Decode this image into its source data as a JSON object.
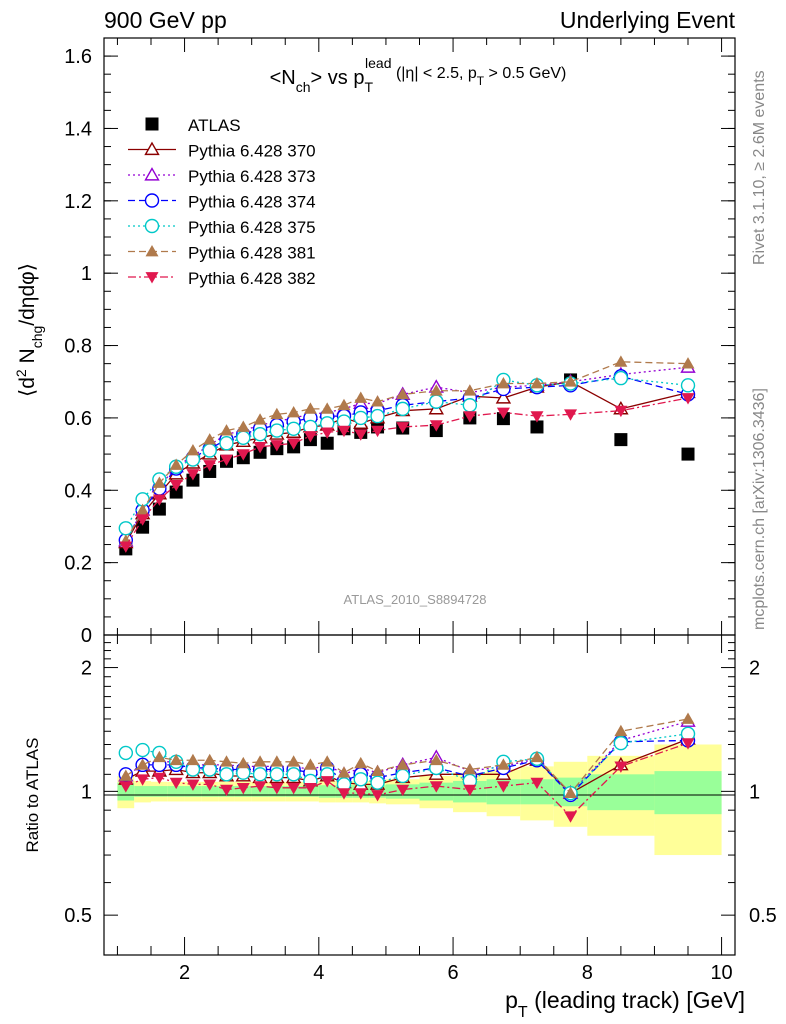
{
  "header": {
    "left": "900 GeV pp",
    "right": "Underlying Event"
  },
  "side": {
    "rivet": "Rivet 3.1.10, ≥ 2.6M events",
    "mcplots": "mcplots.cern.ch [arXiv:1306.3436]"
  },
  "watermark": "ATLAS_2010_S8894728",
  "chart_data": [
    {
      "type": "scatter",
      "title": "<N_ch> vs p_T^lead (|η| < 2.5, p_T > 0.5 GeV)",
      "xlabel": "p_T (leading track) [GeV]",
      "ylabel": "⟨d² N_chg/dηdφ⟩",
      "xlim": [
        0.8,
        10.2
      ],
      "ylim": [
        0,
        1.65
      ],
      "yticks": [
        0,
        0.2,
        0.4,
        0.6,
        0.8,
        1,
        1.2,
        1.4,
        1.6
      ],
      "ytick_labels": [
        "0",
        "0.2",
        "0.4",
        "0.6",
        "0.8",
        "1",
        "1.2",
        "1.4",
        "1.6"
      ],
      "legend_position": "top-left",
      "x": [
        1.125,
        1.375,
        1.625,
        1.875,
        2.125,
        2.375,
        2.625,
        2.875,
        3.125,
        3.375,
        3.625,
        3.875,
        4.125,
        4.375,
        4.625,
        4.875,
        5.25,
        5.75,
        6.25,
        6.75,
        7.25,
        7.75,
        8.5,
        9.5
      ],
      "series": [
        {
          "name": "ATLAS",
          "color": "#000000",
          "marker": "square-filled",
          "line": "none",
          "values": [
            0.238,
            0.298,
            0.348,
            0.395,
            0.428,
            0.452,
            0.48,
            0.49,
            0.505,
            0.515,
            0.52,
            0.54,
            0.53,
            0.57,
            0.56,
            0.575,
            0.572,
            0.565,
            0.6,
            0.598,
            0.575,
            0.705,
            0.54,
            0.5
          ]
        },
        {
          "name": "Pythia 6.428 370",
          "color": "#8b0000",
          "marker": "triangle-up-open",
          "line": "solid",
          "values": [
            0.255,
            0.335,
            0.39,
            0.445,
            0.475,
            0.5,
            0.525,
            0.535,
            0.545,
            0.555,
            0.56,
            0.575,
            0.58,
            0.6,
            0.585,
            0.6,
            0.62,
            0.625,
            0.66,
            0.655,
            0.685,
            0.7,
            0.625,
            0.67
          ]
        },
        {
          "name": "Pythia 6.428 373",
          "color": "#9400d3",
          "marker": "triangle-up-open",
          "line": "dotted",
          "values": [
            0.26,
            0.345,
            0.41,
            0.465,
            0.495,
            0.525,
            0.555,
            0.565,
            0.58,
            0.59,
            0.6,
            0.61,
            0.615,
            0.625,
            0.64,
            0.64,
            0.665,
            0.685,
            0.67,
            0.685,
            0.69,
            0.7,
            0.72,
            0.74
          ]
        },
        {
          "name": "Pythia 6.428 374",
          "color": "#0000ff",
          "marker": "circle-open",
          "line": "dashed",
          "values": [
            0.262,
            0.345,
            0.405,
            0.46,
            0.49,
            0.515,
            0.54,
            0.555,
            0.57,
            0.58,
            0.59,
            0.6,
            0.605,
            0.605,
            0.615,
            0.62,
            0.635,
            0.645,
            0.655,
            0.68,
            0.685,
            0.69,
            0.715,
            0.665
          ]
        },
        {
          "name": "Pythia 6.428 375",
          "color": "#00c8c8",
          "marker": "circle-open",
          "line": "dotted",
          "values": [
            0.295,
            0.375,
            0.43,
            0.465,
            0.485,
            0.51,
            0.53,
            0.545,
            0.555,
            0.565,
            0.57,
            0.575,
            0.585,
            0.59,
            0.6,
            0.605,
            0.625,
            0.645,
            0.635,
            0.705,
            0.69,
            0.695,
            0.71,
            0.69
          ]
        },
        {
          "name": "Pythia 6.428 381",
          "color": "#b07a4c",
          "marker": "triangle-up-filled",
          "line": "dashed",
          "values": [
            0.26,
            0.345,
            0.42,
            0.47,
            0.51,
            0.54,
            0.565,
            0.575,
            0.595,
            0.61,
            0.615,
            0.625,
            0.625,
            0.635,
            0.655,
            0.645,
            0.665,
            0.675,
            0.675,
            0.695,
            0.695,
            0.7,
            0.755,
            0.75
          ]
        },
        {
          "name": "Pythia 6.428 382",
          "color": "#e0184e",
          "marker": "triangle-down-filled",
          "line": "dashdot",
          "values": [
            0.245,
            0.32,
            0.375,
            0.415,
            0.445,
            0.47,
            0.485,
            0.5,
            0.52,
            0.525,
            0.53,
            0.55,
            0.56,
            0.565,
            0.555,
            0.565,
            0.575,
            0.58,
            0.605,
            0.615,
            0.605,
            0.61,
            0.62,
            0.655
          ]
        }
      ]
    },
    {
      "type": "scatter",
      "ylabel": "Ratio to ATLAS",
      "xlabel": "p_T (leading track) [GeV]",
      "xlim": [
        0.8,
        10.2
      ],
      "ylim": [
        0.4,
        2.4
      ],
      "log_y": true,
      "xticks": [
        2,
        4,
        6,
        8,
        10
      ],
      "xtick_labels": [
        "2",
        "4",
        "6",
        "8",
        "10"
      ],
      "yticks": [
        0.5,
        1,
        2
      ],
      "ytick_labels": [
        "0.5",
        "1",
        "2"
      ],
      "x_edges": [
        1.0,
        1.25,
        1.5,
        1.75,
        2.0,
        2.25,
        2.5,
        2.75,
        3.0,
        3.25,
        3.5,
        3.75,
        4.0,
        4.25,
        4.5,
        4.75,
        5.0,
        5.5,
        6.0,
        6.5,
        7.0,
        7.5,
        8.0,
        9.0,
        10.0
      ],
      "band_inner": [
        0.05,
        0.03,
        0.03,
        0.03,
        0.03,
        0.03,
        0.03,
        0.03,
        0.03,
        0.03,
        0.03,
        0.03,
        0.035,
        0.035,
        0.035,
        0.035,
        0.04,
        0.05,
        0.06,
        0.07,
        0.07,
        0.08,
        0.1,
        0.12
      ],
      "band_outer": [
        0.09,
        0.06,
        0.055,
        0.055,
        0.055,
        0.055,
        0.055,
        0.055,
        0.055,
        0.055,
        0.055,
        0.055,
        0.06,
        0.06,
        0.06,
        0.065,
        0.07,
        0.09,
        0.11,
        0.13,
        0.15,
        0.18,
        0.22,
        0.3
      ],
      "band_colors": {
        "inner": "#99ff99",
        "outer": "#ffff99"
      },
      "ratio_series": [
        {
          "name": "Pythia 6.428 370",
          "values": [
            1.07,
            1.12,
            1.12,
            1.13,
            1.11,
            1.11,
            1.09,
            1.09,
            1.08,
            1.08,
            1.08,
            1.06,
            1.09,
            1.05,
            1.04,
            1.04,
            1.08,
            1.1,
            1.1,
            1.1,
            1.19,
            0.99,
            1.16,
            1.34
          ]
        },
        {
          "name": "Pythia 6.428 373",
          "values": [
            1.09,
            1.16,
            1.18,
            1.18,
            1.16,
            1.16,
            1.16,
            1.15,
            1.15,
            1.15,
            1.15,
            1.13,
            1.16,
            1.1,
            1.14,
            1.11,
            1.16,
            1.21,
            1.12,
            1.15,
            1.2,
            0.99,
            1.33,
            1.48
          ]
        },
        {
          "name": "Pythia 6.428 374",
          "values": [
            1.1,
            1.16,
            1.16,
            1.16,
            1.14,
            1.14,
            1.13,
            1.13,
            1.13,
            1.13,
            1.13,
            1.11,
            1.14,
            1.06,
            1.1,
            1.08,
            1.11,
            1.14,
            1.09,
            1.14,
            1.19,
            0.98,
            1.32,
            1.33
          ]
        },
        {
          "name": "Pythia 6.428 375",
          "values": [
            1.24,
            1.26,
            1.24,
            1.18,
            1.13,
            1.13,
            1.1,
            1.11,
            1.1,
            1.1,
            1.1,
            1.06,
            1.1,
            1.04,
            1.07,
            1.05,
            1.09,
            1.14,
            1.06,
            1.18,
            1.2,
            0.99,
            1.31,
            1.38
          ]
        },
        {
          "name": "Pythia 6.428 381",
          "values": [
            1.09,
            1.16,
            1.21,
            1.19,
            1.19,
            1.19,
            1.18,
            1.17,
            1.18,
            1.18,
            1.18,
            1.16,
            1.18,
            1.11,
            1.17,
            1.12,
            1.16,
            1.19,
            1.13,
            1.16,
            1.21,
            0.99,
            1.4,
            1.5
          ]
        },
        {
          "name": "Pythia 6.428 382",
          "values": [
            1.03,
            1.07,
            1.08,
            1.05,
            1.04,
            1.04,
            1.01,
            1.02,
            1.03,
            1.02,
            1.02,
            1.02,
            1.06,
            0.99,
            0.99,
            0.98,
            1.01,
            1.03,
            1.01,
            1.03,
            1.05,
            0.87,
            1.15,
            1.31
          ]
        }
      ]
    }
  ]
}
